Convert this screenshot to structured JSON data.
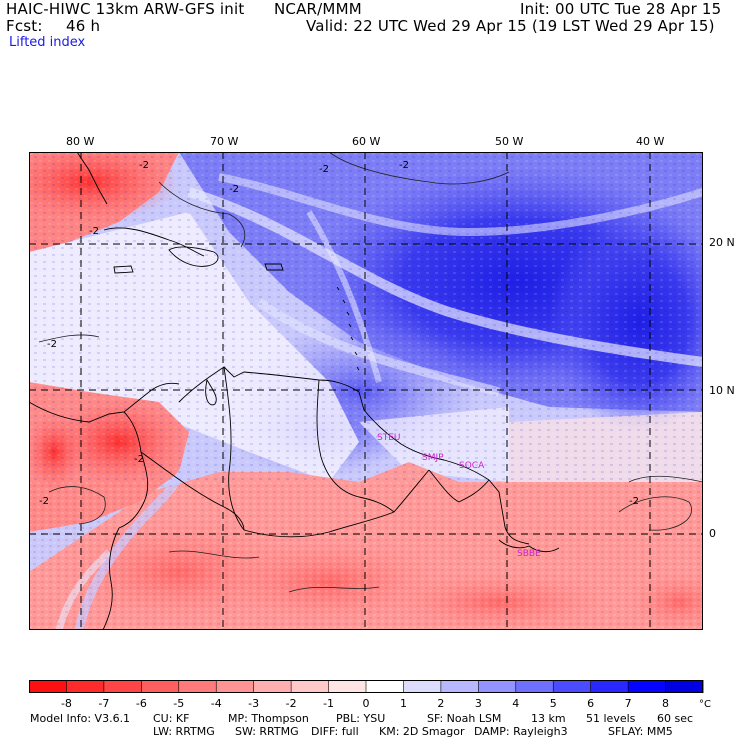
{
  "header": {
    "title": "HAIC-HIWC 13km ARW-GFS init",
    "org": "NCAR/MMM",
    "init": "Init: 00 UTC Tue 28 Apr 15",
    "fcst_label": "Fcst:",
    "fcst_value": "46 h",
    "valid": "Valid: 22 UTC Wed 29 Apr 15 (19 LST Wed 29 Apr 15)",
    "field": "Lifted index"
  },
  "map": {
    "lon_labels": [
      "80 W",
      "70 W",
      "60 W",
      "50 W",
      "40 W"
    ],
    "lat_labels": [
      "20 N",
      "10 N",
      "0"
    ],
    "contour_label": "-2",
    "stations": [
      "STEU",
      "SMJP",
      "SOCA",
      "SBBE"
    ],
    "station_color": "#cc22cc",
    "grid_color": "#000000"
  },
  "colorbar": {
    "ticks": [
      "-8",
      "-7",
      "-6",
      "-5",
      "-4",
      "-3",
      "-2",
      "-1",
      "0",
      "1",
      "2",
      "3",
      "4",
      "5",
      "6",
      "7",
      "8"
    ],
    "unit": "°C",
    "colors": [
      "#ff1010",
      "#ff2a2a",
      "#ff4545",
      "#ff5f5f",
      "#ff7a7a",
      "#ff9494",
      "#ffafaf",
      "#ffc9c9",
      "#ffe4e4",
      "#ffffff",
      "#dcdcff",
      "#b8b8ff",
      "#9494ff",
      "#7070ff",
      "#4c4cff",
      "#2828ff",
      "#0404ff",
      "#0000e0"
    ]
  },
  "footer": {
    "line1": [
      "Model Info: V3.6.1",
      "CU: KF",
      "MP: Thompson",
      "PBL: YSU",
      "SF: Noah LSM",
      "13 km",
      "51 levels",
      "60 sec"
    ],
    "line2": [
      "LW: RRTMG",
      "SW: RRTMG",
      "DIFF: full",
      "KM: 2D Smagor",
      "DAMP: Rayleigh3",
      "SFLAY: MM5"
    ]
  }
}
